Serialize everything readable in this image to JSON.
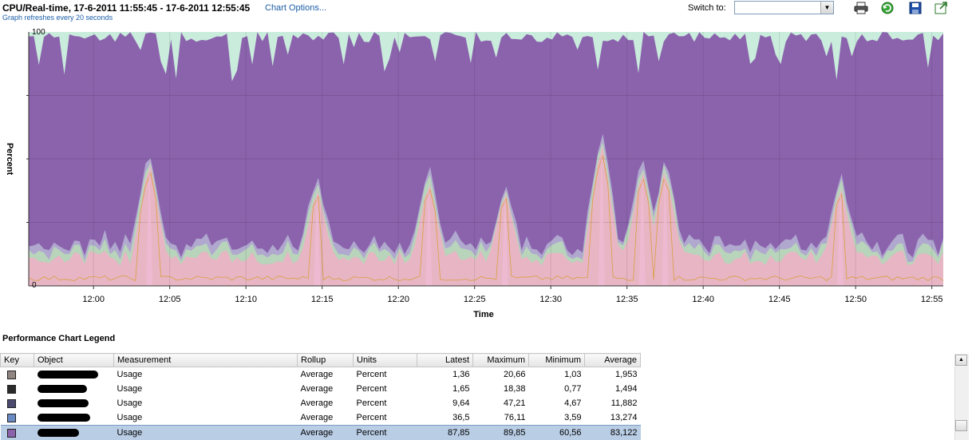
{
  "header": {
    "title": "CPU/Real-time, 17-6-2011 11:55:45 - 17-6-2011 12:55:45",
    "chart_options_link": "Chart Options...",
    "refresh_note": "Graph refreshes every 20 seconds",
    "switch_to_label": "Switch to:",
    "switch_to_value": "",
    "icons": [
      "printer-icon",
      "refresh-icon",
      "save-icon",
      "export-icon"
    ]
  },
  "chart_data": {
    "type": "area",
    "stacked": true,
    "xlabel": "Time",
    "ylabel": "Percent",
    "ylim": [
      0,
      100
    ],
    "ytick_labels": [
      "0",
      "100"
    ],
    "x_tick_labels": [
      "12:00",
      "12:05",
      "12:10",
      "12:15",
      "12:20",
      "12:25",
      "12:30",
      "12:35",
      "12:40",
      "12:45",
      "12:50",
      "12:55"
    ],
    "x_start": "11:55:45",
    "x_end": "12:55:45",
    "sample_interval_seconds": 20,
    "colors": {
      "bottom_layer": "#e8b5c4",
      "second_layer": "#b8d4ba",
      "third_layer": "#b0a8cf",
      "top_usage": "#8b63ad",
      "remainder": "#c9ecdc",
      "pink_peak": "#f0bcd8",
      "orange_line": "#d8a040"
    },
    "series": [
      {
        "name": "Usage",
        "color": "#908580",
        "latest": 1.36,
        "maximum": 20.66,
        "minimum": 1.03,
        "average": 1.953
      },
      {
        "name": "Usage",
        "color": "#2a2a2a",
        "latest": 1.65,
        "maximum": 18.38,
        "minimum": 0.77,
        "average": 1.494
      },
      {
        "name": "Usage",
        "color": "#4a4a70",
        "latest": 9.64,
        "maximum": 47.21,
        "minimum": 4.67,
        "average": 11.882
      },
      {
        "name": "Usage",
        "color": "#6a8ac4",
        "latest": 36.5,
        "maximum": 76.11,
        "minimum": 3.59,
        "average": 13.274
      },
      {
        "name": "Usage",
        "color": "#8b63ad",
        "latest": 87.85,
        "maximum": 89.85,
        "minimum": 60.56,
        "average": 83.122
      }
    ],
    "spikes": [
      {
        "time": "12:03:40",
        "value": 50
      },
      {
        "time": "12:14:40",
        "value": 39
      },
      {
        "time": "12:22:00",
        "value": 42
      },
      {
        "time": "12:27:00",
        "value": 38
      },
      {
        "time": "12:33:20",
        "value": 58
      },
      {
        "time": "12:36:00",
        "value": 47
      },
      {
        "time": "12:37:30",
        "value": 47
      },
      {
        "time": "12:49:00",
        "value": 40
      }
    ]
  },
  "legend": {
    "title": "Performance Chart Legend",
    "columns": [
      "Key",
      "Object",
      "Measurement",
      "Rollup",
      "Units",
      "Latest",
      "Maximum",
      "Minimum",
      "Average"
    ],
    "rows": [
      {
        "key_color": "#908580",
        "object": "",
        "measurement": "Usage",
        "rollup": "Average",
        "units": "Percent",
        "latest": "1,36",
        "maximum": "20,66",
        "minimum": "1,03",
        "average": "1,953",
        "selected": false
      },
      {
        "key_color": "#2a2a2a",
        "object": "",
        "measurement": "Usage",
        "rollup": "Average",
        "units": "Percent",
        "latest": "1,65",
        "maximum": "18,38",
        "minimum": "0,77",
        "average": "1,494",
        "selected": false
      },
      {
        "key_color": "#4a4a70",
        "object": "",
        "measurement": "Usage",
        "rollup": "Average",
        "units": "Percent",
        "latest": "9,64",
        "maximum": "47,21",
        "minimum": "4,67",
        "average": "11,882",
        "selected": false
      },
      {
        "key_color": "#6a8ac4",
        "object": "",
        "measurement": "Usage",
        "rollup": "Average",
        "units": "Percent",
        "latest": "36,5",
        "maximum": "76,11",
        "minimum": "3,59",
        "average": "13,274",
        "selected": false
      },
      {
        "key_color": "#8b63ad",
        "object": "",
        "measurement": "Usage",
        "rollup": "Average",
        "units": "Percent",
        "latest": "87,85",
        "maximum": "89,85",
        "minimum": "60,56",
        "average": "83,122",
        "selected": true
      }
    ]
  }
}
